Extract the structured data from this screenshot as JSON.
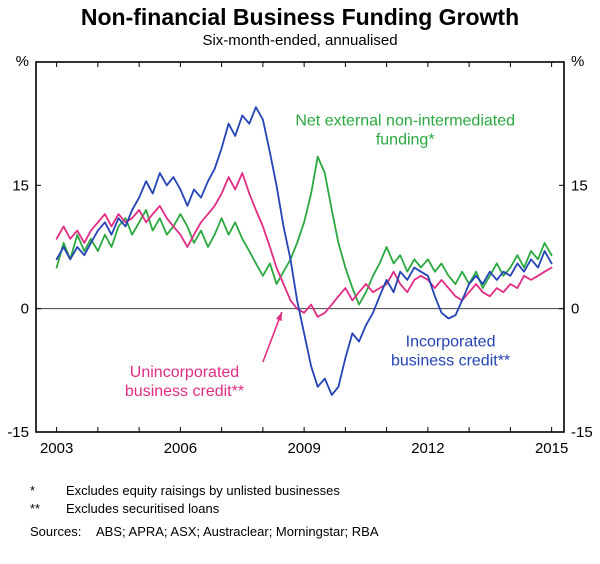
{
  "chart_data": {
    "type": "line",
    "title": "Non-financial Business Funding Growth",
    "subtitle": "Six-month-ended, annualised",
    "unit": "%",
    "xlim": [
      2002.5,
      2015.3
    ],
    "ylim": [
      -15,
      30
    ],
    "yticks": [
      -15,
      0,
      15
    ],
    "xticks": [
      2003,
      2006,
      2009,
      2012,
      2015
    ],
    "grid": "zero-line-only",
    "legend": "in-plot colored annotations",
    "series": [
      {
        "id": "net-external",
        "name": "Net external non-intermediated funding*",
        "color": "#2aa83f",
        "points": [
          [
            2003.0,
            5
          ],
          [
            2003.17,
            8
          ],
          [
            2003.33,
            6
          ],
          [
            2003.5,
            9
          ],
          [
            2003.67,
            7
          ],
          [
            2003.83,
            8.5
          ],
          [
            2004.0,
            7
          ],
          [
            2004.17,
            9
          ],
          [
            2004.33,
            7.5
          ],
          [
            2004.5,
            10
          ],
          [
            2004.67,
            11
          ],
          [
            2004.83,
            9
          ],
          [
            2005.0,
            10.5
          ],
          [
            2005.17,
            12
          ],
          [
            2005.33,
            9.5
          ],
          [
            2005.5,
            11
          ],
          [
            2005.67,
            9
          ],
          [
            2005.83,
            10
          ],
          [
            2006.0,
            11.5
          ],
          [
            2006.17,
            10
          ],
          [
            2006.33,
            8
          ],
          [
            2006.5,
            9.5
          ],
          [
            2006.67,
            7.5
          ],
          [
            2006.83,
            9
          ],
          [
            2007.0,
            11
          ],
          [
            2007.17,
            9
          ],
          [
            2007.33,
            10.5
          ],
          [
            2007.5,
            8.5
          ],
          [
            2007.67,
            7
          ],
          [
            2007.83,
            5.5
          ],
          [
            2008.0,
            4
          ],
          [
            2008.17,
            5.5
          ],
          [
            2008.33,
            3
          ],
          [
            2008.5,
            4.5
          ],
          [
            2008.67,
            6
          ],
          [
            2008.83,
            8
          ],
          [
            2009.0,
            10.5
          ],
          [
            2009.17,
            14
          ],
          [
            2009.33,
            18.5
          ],
          [
            2009.5,
            16.5
          ],
          [
            2009.67,
            12
          ],
          [
            2009.83,
            8
          ],
          [
            2010.0,
            5
          ],
          [
            2010.17,
            2.5
          ],
          [
            2010.33,
            0.5
          ],
          [
            2010.5,
            2
          ],
          [
            2010.67,
            4
          ],
          [
            2010.83,
            5.5
          ],
          [
            2011.0,
            7.5
          ],
          [
            2011.17,
            5.5
          ],
          [
            2011.33,
            6.5
          ],
          [
            2011.5,
            4.5
          ],
          [
            2011.67,
            6
          ],
          [
            2011.83,
            5
          ],
          [
            2012.0,
            6
          ],
          [
            2012.17,
            4.5
          ],
          [
            2012.33,
            5.5
          ],
          [
            2012.5,
            4
          ],
          [
            2012.67,
            3
          ],
          [
            2012.83,
            4.5
          ],
          [
            2013.0,
            3
          ],
          [
            2013.17,
            4.5
          ],
          [
            2013.33,
            2.5
          ],
          [
            2013.5,
            4
          ],
          [
            2013.67,
            5.5
          ],
          [
            2013.83,
            4
          ],
          [
            2014.0,
            5
          ],
          [
            2014.17,
            6.5
          ],
          [
            2014.33,
            5
          ],
          [
            2014.5,
            7
          ],
          [
            2014.67,
            6
          ],
          [
            2014.83,
            8
          ],
          [
            2015.0,
            6.5
          ]
        ]
      },
      {
        "id": "unincorporated",
        "name": "Unincorporated business credit**",
        "color": "#e12c83",
        "points": [
          [
            2003.0,
            8.5
          ],
          [
            2003.17,
            10
          ],
          [
            2003.33,
            8.5
          ],
          [
            2003.5,
            9.5
          ],
          [
            2003.67,
            8
          ],
          [
            2003.83,
            9.5
          ],
          [
            2004.0,
            10.5
          ],
          [
            2004.17,
            11.5
          ],
          [
            2004.33,
            10
          ],
          [
            2004.5,
            11.5
          ],
          [
            2004.67,
            10.5
          ],
          [
            2004.83,
            11
          ],
          [
            2005.0,
            12
          ],
          [
            2005.17,
            10.5
          ],
          [
            2005.33,
            11.5
          ],
          [
            2005.5,
            12.5
          ],
          [
            2005.67,
            11
          ],
          [
            2005.83,
            10
          ],
          [
            2006.0,
            9
          ],
          [
            2006.17,
            7.5
          ],
          [
            2006.33,
            9
          ],
          [
            2006.5,
            10.5
          ],
          [
            2006.67,
            11.5
          ],
          [
            2006.83,
            12.5
          ],
          [
            2007.0,
            14
          ],
          [
            2007.17,
            16
          ],
          [
            2007.33,
            14.5
          ],
          [
            2007.5,
            16.5
          ],
          [
            2007.67,
            14
          ],
          [
            2007.83,
            12
          ],
          [
            2008.0,
            10
          ],
          [
            2008.17,
            7.5
          ],
          [
            2008.33,
            5
          ],
          [
            2008.5,
            3
          ],
          [
            2008.67,
            1
          ],
          [
            2008.83,
            0
          ],
          [
            2009.0,
            -0.5
          ],
          [
            2009.17,
            0.5
          ],
          [
            2009.33,
            -1
          ],
          [
            2009.5,
            -0.5
          ],
          [
            2009.67,
            0.5
          ],
          [
            2009.83,
            1.5
          ],
          [
            2010.0,
            2.5
          ],
          [
            2010.17,
            1
          ],
          [
            2010.33,
            2
          ],
          [
            2010.5,
            3
          ],
          [
            2010.67,
            2
          ],
          [
            2010.83,
            2.5
          ],
          [
            2011.0,
            3
          ],
          [
            2011.17,
            4.5
          ],
          [
            2011.33,
            3
          ],
          [
            2011.5,
            2
          ],
          [
            2011.67,
            3.5
          ],
          [
            2011.83,
            4
          ],
          [
            2012.0,
            3.5
          ],
          [
            2012.17,
            2.5
          ],
          [
            2012.33,
            3.5
          ],
          [
            2012.5,
            2.5
          ],
          [
            2012.67,
            1.5
          ],
          [
            2012.83,
            1
          ],
          [
            2013.0,
            2
          ],
          [
            2013.17,
            3
          ],
          [
            2013.33,
            2
          ],
          [
            2013.5,
            1.5
          ],
          [
            2013.67,
            2.5
          ],
          [
            2013.83,
            2
          ],
          [
            2014.0,
            3
          ],
          [
            2014.17,
            2.5
          ],
          [
            2014.33,
            4
          ],
          [
            2014.5,
            3.5
          ],
          [
            2014.67,
            4
          ],
          [
            2014.83,
            4.5
          ],
          [
            2015.0,
            5
          ]
        ]
      },
      {
        "id": "incorporated",
        "name": "Incorporated business credit**",
        "color": "#2443b5",
        "points": [
          [
            2003.0,
            6
          ],
          [
            2003.17,
            7.5
          ],
          [
            2003.33,
            6
          ],
          [
            2003.5,
            7.5
          ],
          [
            2003.67,
            6.5
          ],
          [
            2003.83,
            8
          ],
          [
            2004.0,
            9.5
          ],
          [
            2004.17,
            10.5
          ],
          [
            2004.33,
            9
          ],
          [
            2004.5,
            11
          ],
          [
            2004.67,
            10
          ],
          [
            2004.83,
            12
          ],
          [
            2005.0,
            13.5
          ],
          [
            2005.17,
            15.5
          ],
          [
            2005.33,
            14
          ],
          [
            2005.5,
            16.5
          ],
          [
            2005.67,
            15
          ],
          [
            2005.83,
            16
          ],
          [
            2006.0,
            14.5
          ],
          [
            2006.17,
            12.5
          ],
          [
            2006.33,
            14.5
          ],
          [
            2006.5,
            13.5
          ],
          [
            2006.67,
            15.5
          ],
          [
            2006.83,
            17
          ],
          [
            2007.0,
            19.5
          ],
          [
            2007.17,
            22.5
          ],
          [
            2007.33,
            21
          ],
          [
            2007.5,
            23.5
          ],
          [
            2007.67,
            22.5
          ],
          [
            2007.83,
            24.5
          ],
          [
            2008.0,
            23
          ],
          [
            2008.17,
            19
          ],
          [
            2008.33,
            15
          ],
          [
            2008.5,
            10
          ],
          [
            2008.67,
            6
          ],
          [
            2008.83,
            1
          ],
          [
            2009.0,
            -3
          ],
          [
            2009.17,
            -7
          ],
          [
            2009.33,
            -9.5
          ],
          [
            2009.5,
            -8.5
          ],
          [
            2009.67,
            -10.5
          ],
          [
            2009.83,
            -9.5
          ],
          [
            2010.0,
            -6
          ],
          [
            2010.17,
            -3
          ],
          [
            2010.33,
            -4
          ],
          [
            2010.5,
            -2
          ],
          [
            2010.67,
            -0.5
          ],
          [
            2010.83,
            1.5
          ],
          [
            2011.0,
            3.5
          ],
          [
            2011.17,
            2
          ],
          [
            2011.33,
            4.5
          ],
          [
            2011.5,
            3.5
          ],
          [
            2011.67,
            5
          ],
          [
            2011.83,
            4.5
          ],
          [
            2012.0,
            4
          ],
          [
            2012.17,
            1.5
          ],
          [
            2012.33,
            -0.5
          ],
          [
            2012.5,
            -1.2
          ],
          [
            2012.67,
            -0.8
          ],
          [
            2012.83,
            1
          ],
          [
            2013.0,
            3
          ],
          [
            2013.17,
            4
          ],
          [
            2013.33,
            3
          ],
          [
            2013.5,
            4.5
          ],
          [
            2013.67,
            3.5
          ],
          [
            2013.83,
            4.5
          ],
          [
            2014.0,
            4
          ],
          [
            2014.17,
            5.5
          ],
          [
            2014.33,
            4.5
          ],
          [
            2014.5,
            6
          ],
          [
            2014.67,
            5
          ],
          [
            2014.83,
            7
          ],
          [
            2015.0,
            5.5
          ]
        ]
      }
    ],
    "annotations": [
      {
        "id": "net-external-label",
        "lines": [
          "Net external non-intermediated",
          "funding*"
        ],
        "x": 2011.45,
        "y": 22.3,
        "color": "#2aa83f"
      },
      {
        "id": "incorporated-label",
        "lines": [
          "Incorporated",
          "business credit**"
        ],
        "x": 2012.55,
        "y": -4.6,
        "color": "#2443b5"
      },
      {
        "id": "unincorporated-label",
        "lines": [
          "Unincorporated",
          "business credit**"
        ],
        "x": 2006.1,
        "y": -8.3,
        "color": "#e12c83"
      }
    ],
    "arrow": {
      "from": {
        "x": 2008.0,
        "y": -6.5
      },
      "to": {
        "x": 2008.46,
        "y": -0.4
      },
      "color": "#e12c83"
    }
  },
  "footnotes": [
    {
      "marker": "*",
      "text": "Excludes equity raisings by unlisted businesses"
    },
    {
      "marker": "**",
      "text": "Excludes securitised loans"
    }
  ],
  "sources": {
    "label": "Sources:",
    "text": "ABS; APRA; ASX; Austraclear; Morningstar; RBA"
  }
}
